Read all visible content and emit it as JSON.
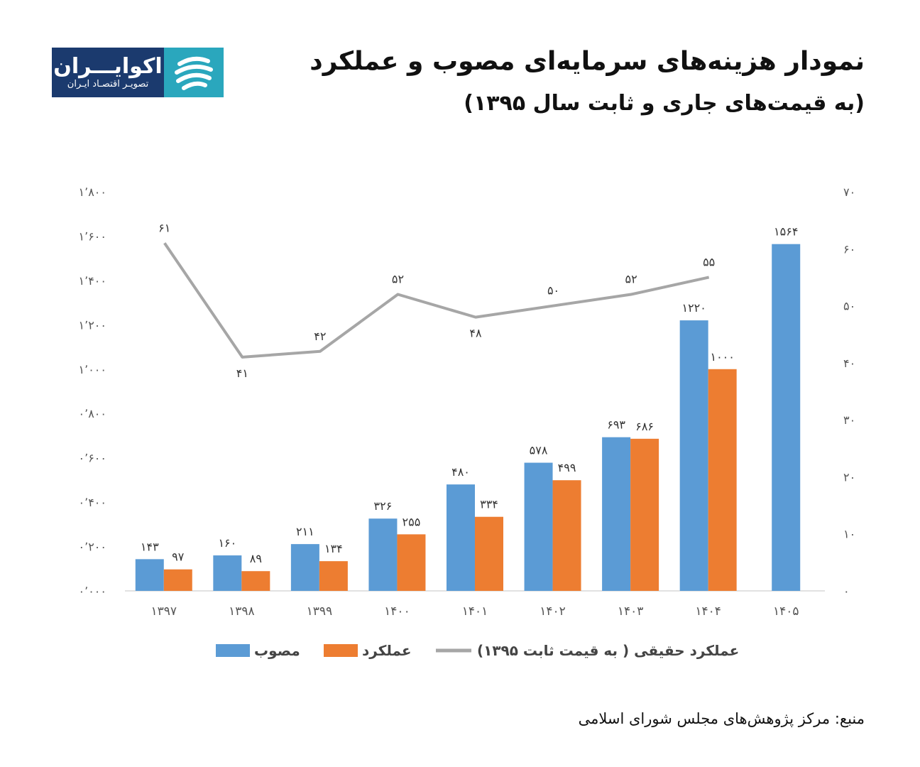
{
  "logo": {
    "name": "اکوایـــران",
    "tagline": "تصویـر اقتصـاد ایـران"
  },
  "header": {
    "title": "نمودار هزینه‌های سرمایه‌ای مصوب و عملکرد",
    "subtitle": "(به قیمت‌های جاری و ثابت سال ۱۳۹۵)"
  },
  "source": "منبع: مرکز پژوهش‌های مجلس شورای اسلامی",
  "colors": {
    "approved": "#5b9bd5",
    "performance": "#ed7d31",
    "real": "#a6a6a6"
  },
  "chart_data": {
    "type": "bar",
    "title": "نمودار هزینه‌های سرمایه‌ای مصوب و عملکرد",
    "categories": [
      "۱۳۹۷",
      "۱۳۹۸",
      "۱۳۹۹",
      "۱۴۰۰",
      "۱۴۰۱",
      "۱۴۰۲",
      "۱۴۰۳",
      "۱۴۰۴",
      "۱۴۰۵"
    ],
    "series": [
      {
        "name": "مصوب",
        "kind": "bar",
        "axis": "left",
        "values": [
          143,
          160,
          211,
          326,
          480,
          578,
          693,
          1220,
          1564
        ],
        "labels": [
          "۱۴۳",
          "۱۶۰",
          "۲۱۱",
          "۳۲۶",
          "۴۸۰",
          "۵۷۸",
          "۶۹۳",
          "۱۲۲۰",
          "۱۵۶۴"
        ]
      },
      {
        "name": "عملکرد",
        "kind": "bar",
        "axis": "left",
        "values": [
          97,
          89,
          134,
          255,
          334,
          499,
          686,
          1000,
          null
        ],
        "labels": [
          "۹۷",
          "۸۹",
          "۱۳۴",
          "۲۵۵",
          "۳۳۴",
          "۴۹۹",
          "۶۸۶",
          "۱۰۰۰",
          ""
        ]
      },
      {
        "name": "عملکرد حقیقی ( به قیمت ثابت ۱۳۹۵)",
        "kind": "line",
        "axis": "right",
        "values": [
          61,
          41,
          42,
          52,
          48,
          50,
          52,
          55,
          null
        ],
        "labels": [
          "۶۱",
          "۴۱",
          "۴۲",
          "۵۲",
          "۴۸",
          "۵۰",
          "۵۲",
          "۵۵",
          ""
        ]
      }
    ],
    "left_axis": {
      "ylim": [
        0,
        1800
      ],
      "ticks": [
        0,
        200,
        400,
        600,
        800,
        1000,
        1200,
        1400,
        1600,
        1800
      ],
      "tick_labels": [
        "۰٬۰۰۰",
        "۰٬۲۰۰",
        "۰٬۴۰۰",
        "۰٬۶۰۰",
        "۰٬۸۰۰",
        "۱٬۰۰۰",
        "۱٬۲۰۰",
        "۱٬۴۰۰",
        "۱٬۶۰۰",
        "۱٬۸۰۰"
      ]
    },
    "right_axis": {
      "ylim": [
        0,
        70
      ],
      "ticks": [
        0,
        10,
        20,
        30,
        40,
        50,
        60,
        70
      ],
      "tick_labels": [
        "۰",
        "۱۰",
        "۲۰",
        "۳۰",
        "۴۰",
        "۵۰",
        "۶۰",
        "۷۰"
      ]
    },
    "grid": false,
    "legend_position": "bottom"
  }
}
